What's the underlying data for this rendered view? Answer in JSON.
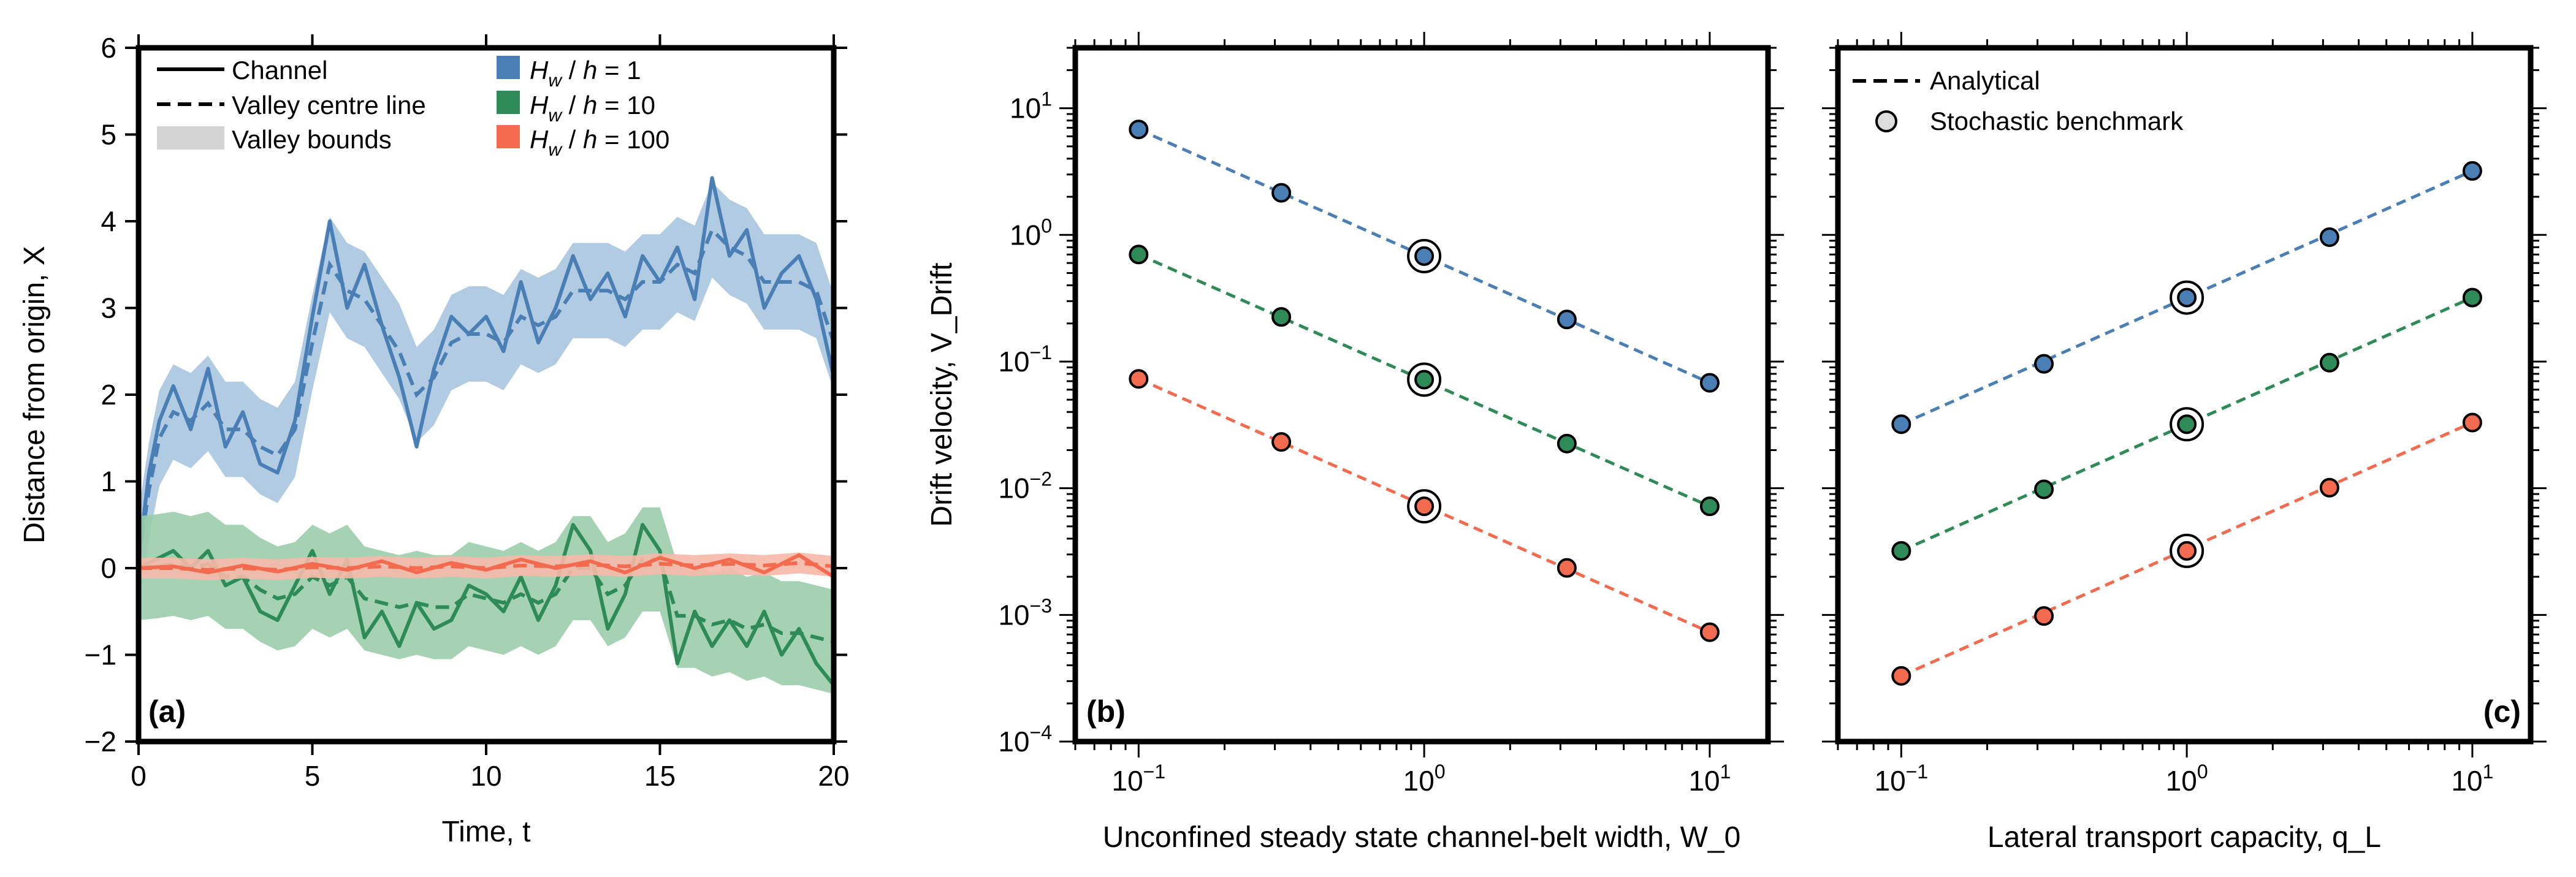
{
  "colors": {
    "blue": "#4a7fb5",
    "blue_fill": "#a9c5e0",
    "green": "#2e8b57",
    "green_fill": "#9acdaa",
    "red": "#f26b4f",
    "red_fill": "#f7b8a8",
    "grey_fill": "#d4d4d4",
    "marker_edge": "#000000"
  },
  "chart_data": [
    {
      "panel_label": "(a)",
      "type": "line",
      "xlabel": "Time, t",
      "ylabel": "Distance from origin, X",
      "xlim": [
        0,
        20
      ],
      "ylim": [
        -2,
        6
      ],
      "xticks": [
        "0",
        "5",
        "10",
        "15",
        "20"
      ],
      "yticks": [
        "−2",
        "−1",
        "0",
        "1",
        "2",
        "3",
        "4",
        "5",
        "6"
      ],
      "legend_left": [
        "Channel",
        "Valley centre line",
        "Valley bounds"
      ],
      "legend_right": [
        {
          "name": "H_w / h = 1",
          "color": "blue"
        },
        {
          "name": "H_w / h = 10",
          "color": "green"
        },
        {
          "name": "H_w / h = 100",
          "color": "red"
        }
      ],
      "series": [
        {
          "name": "H_w / h = 1",
          "color": "blue",
          "t": [
            0,
            0.3,
            0.6,
            1,
            1.5,
            2,
            2.5,
            3,
            3.5,
            4,
            4.5,
            5,
            5.5,
            6,
            6.5,
            7,
            7.5,
            8,
            8.5,
            9,
            9.5,
            10,
            10.5,
            11,
            11.5,
            12,
            12.5,
            13,
            13.5,
            14,
            14.5,
            15,
            15.5,
            16,
            16.5,
            17,
            17.5,
            18,
            18.5,
            19,
            19.5,
            20
          ],
          "channel": [
            0.1,
            1.1,
            1.7,
            2.1,
            1.6,
            2.3,
            1.4,
            1.8,
            1.2,
            1.1,
            1.7,
            2.9,
            4.0,
            3.0,
            3.5,
            2.8,
            2.2,
            1.4,
            2.3,
            2.9,
            2.7,
            2.9,
            2.5,
            3.3,
            2.6,
            3.0,
            3.6,
            3.1,
            3.4,
            2.9,
            3.6,
            3.3,
            3.7,
            3.1,
            4.5,
            3.6,
            3.9,
            3.0,
            3.4,
            3.6,
            3.1,
            2.2
          ],
          "centre": [
            0.1,
            0.9,
            1.5,
            1.8,
            1.7,
            1.9,
            1.6,
            1.6,
            1.4,
            1.3,
            1.6,
            2.6,
            3.5,
            3.2,
            3.1,
            2.8,
            2.5,
            2.0,
            2.2,
            2.6,
            2.7,
            2.7,
            2.6,
            2.9,
            2.8,
            2.9,
            3.2,
            3.2,
            3.2,
            3.1,
            3.3,
            3.3,
            3.5,
            3.4,
            3.9,
            3.7,
            3.6,
            3.3,
            3.3,
            3.3,
            3.2,
            2.6
          ],
          "halfwidth": 0.55
        },
        {
          "name": "H_w / h = 10",
          "color": "green",
          "t": [
            0,
            0.5,
            1,
            1.5,
            2,
            2.5,
            3,
            3.5,
            4,
            4.5,
            5,
            5.5,
            6,
            6.5,
            7,
            7.5,
            8,
            8.5,
            9,
            9.5,
            10,
            10.5,
            11,
            11.5,
            12,
            12.5,
            13,
            13.5,
            14,
            14.5,
            15,
            15.5,
            16,
            16.5,
            17,
            17.5,
            18,
            18.5,
            19,
            19.5,
            20
          ],
          "channel": [
            0.0,
            0.1,
            0.2,
            0.0,
            0.2,
            -0.2,
            -0.1,
            -0.5,
            -0.6,
            -0.2,
            0.2,
            -0.3,
            0.1,
            -0.8,
            -0.5,
            -0.9,
            -0.4,
            -0.7,
            -0.6,
            -0.2,
            -0.3,
            -0.5,
            -0.1,
            -0.6,
            -0.2,
            0.5,
            0.2,
            -0.7,
            -0.3,
            0.5,
            0.2,
            -1.1,
            -0.5,
            -0.9,
            -0.6,
            -0.9,
            -0.5,
            -1.0,
            -0.7,
            -1.1,
            -1.35
          ],
          "centre": [
            0.0,
            0.02,
            0.05,
            0.0,
            0.05,
            -0.1,
            -0.1,
            -0.25,
            -0.35,
            -0.3,
            -0.1,
            -0.2,
            -0.1,
            -0.35,
            -0.4,
            -0.45,
            -0.4,
            -0.45,
            -0.45,
            -0.3,
            -0.35,
            -0.4,
            -0.3,
            -0.4,
            -0.3,
            0.0,
            0.0,
            -0.3,
            -0.2,
            0.1,
            0.1,
            -0.55,
            -0.55,
            -0.65,
            -0.6,
            -0.7,
            -0.65,
            -0.75,
            -0.75,
            -0.8,
            -0.85
          ],
          "halfwidth": 0.6
        },
        {
          "name": "H_w / h = 100",
          "color": "red",
          "t": [
            0,
            1,
            2,
            3,
            4,
            5,
            6,
            7,
            8,
            9,
            10,
            11,
            12,
            13,
            14,
            15,
            16,
            17,
            18,
            19,
            20
          ],
          "channel": [
            0.0,
            0.02,
            -0.05,
            0.03,
            -0.04,
            0.05,
            -0.02,
            0.08,
            -0.05,
            0.06,
            -0.02,
            0.1,
            0.0,
            0.08,
            -0.05,
            0.12,
            0.0,
            0.1,
            -0.05,
            0.15,
            -0.1
          ],
          "centre": [
            0.0,
            0.0,
            -0.02,
            0.0,
            -0.02,
            0.01,
            0.0,
            0.02,
            0.0,
            0.02,
            0.0,
            0.03,
            0.02,
            0.04,
            0.02,
            0.05,
            0.03,
            0.05,
            0.03,
            0.06,
            0.02
          ],
          "halfwidth": 0.12
        }
      ]
    },
    {
      "panel_label": "(b)",
      "type": "scatter",
      "xscale": "log",
      "yscale": "log",
      "xlabel": "Unconfined steady state channel-belt width, W_0",
      "ylabel": "Drift velocity, V_Drift",
      "xlim": [
        0.06,
        16
      ],
      "ylim": [
        0.0001,
        30
      ],
      "xticks": [
        {
          "v": 0.1,
          "base": "10",
          "exp": "−1"
        },
        {
          "v": 1,
          "base": "10",
          "exp": "0"
        },
        {
          "v": 10,
          "base": "10",
          "exp": "1"
        }
      ],
      "yticks": [
        {
          "v": 0.0001,
          "base": "10",
          "exp": "−4"
        },
        {
          "v": 0.001,
          "base": "10",
          "exp": "−3"
        },
        {
          "v": 0.01,
          "base": "10",
          "exp": "−2"
        },
        {
          "v": 0.1,
          "base": "10",
          "exp": "−1"
        },
        {
          "v": 1,
          "base": "10",
          "exp": "0"
        },
        {
          "v": 10,
          "base": "10",
          "exp": "1"
        }
      ],
      "series": [
        {
          "name": "H_w / h = 1",
          "color": "blue",
          "x": [
            0.1,
            0.316,
            1,
            3.16,
            10
          ],
          "y": [
            6.8,
            2.15,
            0.68,
            0.215,
            0.068
          ],
          "benchmark_x": 1
        },
        {
          "name": "H_w / h = 10",
          "color": "green",
          "x": [
            0.1,
            0.316,
            1,
            3.16,
            10
          ],
          "y": [
            0.7,
            0.225,
            0.072,
            0.0225,
            0.0072
          ],
          "benchmark_x": 1
        },
        {
          "name": "H_w / h = 100",
          "color": "red",
          "x": [
            0.1,
            0.316,
            1,
            3.16,
            10
          ],
          "y": [
            0.073,
            0.0232,
            0.0072,
            0.00235,
            0.00073
          ],
          "benchmark_x": 1
        }
      ]
    },
    {
      "panel_label": "(c)",
      "type": "scatter",
      "xscale": "log",
      "yscale": "log",
      "xlabel": "Lateral transport capacity, q_L",
      "ylabel": "",
      "xlim": [
        0.06,
        16
      ],
      "ylim": [
        0.0001,
        30
      ],
      "xticks": [
        {
          "v": 0.1,
          "base": "10",
          "exp": "−1"
        },
        {
          "v": 1,
          "base": "10",
          "exp": "0"
        },
        {
          "v": 10,
          "base": "10",
          "exp": "1"
        }
      ],
      "legend": [
        "Analytical",
        "Stochastic benchmark"
      ],
      "series": [
        {
          "name": "H_w / h = 1",
          "color": "blue",
          "x": [
            0.1,
            0.316,
            1,
            3.16,
            10
          ],
          "y": [
            0.032,
            0.096,
            0.32,
            0.96,
            3.2
          ],
          "benchmark_x": 1
        },
        {
          "name": "H_w / h = 10",
          "color": "green",
          "x": [
            0.1,
            0.316,
            1,
            3.16,
            10
          ],
          "y": [
            0.0032,
            0.0098,
            0.032,
            0.098,
            0.32
          ],
          "benchmark_x": 1
        },
        {
          "name": "H_w / h = 100",
          "color": "red",
          "x": [
            0.1,
            0.316,
            1,
            3.16,
            10
          ],
          "y": [
            0.00033,
            0.00098,
            0.0032,
            0.0101,
            0.033
          ],
          "benchmark_x": 1
        }
      ]
    }
  ]
}
